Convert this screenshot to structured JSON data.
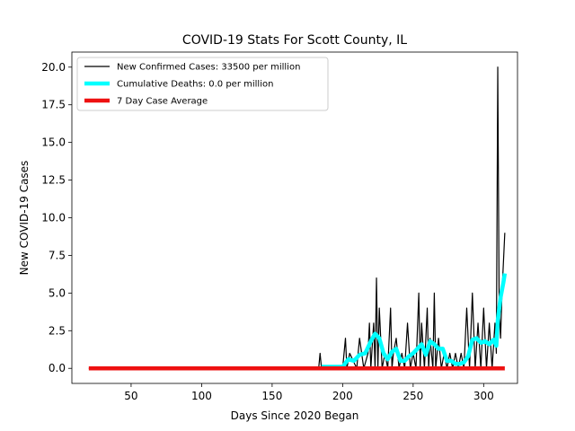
{
  "chart_data": {
    "type": "line",
    "title": "COVID-19 Stats For Scott County, IL",
    "xlabel": "Days Since 2020 Began",
    "ylabel": "New COVID-19 Cases",
    "xlim": [
      8,
      324
    ],
    "ylim": [
      -1.0,
      21.0
    ],
    "xticks": [
      50,
      100,
      150,
      200,
      250,
      300
    ],
    "xtick_labels": [
      "50",
      "100",
      "150",
      "200",
      "250",
      "300"
    ],
    "yticks": [
      0,
      2.5,
      5,
      7.5,
      10,
      12.5,
      15,
      17.5,
      20
    ],
    "ytick_labels": [
      "0.0",
      "2.5",
      "5.0",
      "7.5",
      "10.0",
      "12.5",
      "15.0",
      "17.5",
      "20.0"
    ],
    "grid": false,
    "legend_position": "top-left",
    "series": [
      {
        "name": "New Confirmed Cases: 33500 per million",
        "color": "#000000",
        "x": [
          20,
          183,
          184,
          185,
          200,
          202,
          203,
          205,
          210,
          212,
          215,
          218,
          219,
          220,
          222,
          223,
          224,
          225,
          226,
          227,
          228,
          230,
          232,
          234,
          235,
          236,
          238,
          240,
          242,
          244,
          246,
          248,
          250,
          252,
          254,
          255,
          256,
          258,
          260,
          261,
          262,
          264,
          265,
          266,
          268,
          270,
          272,
          274,
          276,
          278,
          280,
          282,
          284,
          286,
          288,
          290,
          292,
          294,
          296,
          298,
          300,
          302,
          304,
          306,
          308,
          309,
          310,
          311,
          312,
          313,
          314,
          315
        ],
        "y": [
          0,
          0,
          1,
          0,
          0,
          2,
          0,
          1,
          0,
          2,
          0,
          1,
          3,
          0,
          3,
          0,
          6,
          0,
          4,
          2,
          0,
          1,
          0,
          4,
          0,
          1,
          2,
          0,
          1,
          0,
          3,
          0,
          1,
          0,
          5,
          0,
          3,
          0,
          4,
          0,
          2,
          0,
          5,
          0,
          2,
          0,
          1,
          0,
          1,
          0,
          1,
          0,
          1,
          0,
          4,
          0,
          5,
          0,
          3,
          0,
          4,
          0,
          3,
          0,
          3,
          1,
          20,
          4,
          2,
          5,
          7,
          9
        ]
      },
      {
        "name": "Cumulative Deaths: 0.0 per million",
        "color": "#00ffff",
        "x": [
          185,
          188,
          200,
          204,
          208,
          212,
          216,
          220,
          223,
          226,
          229,
          232,
          235,
          238,
          241,
          244,
          247,
          250,
          253,
          256,
          259,
          262,
          265,
          268,
          271,
          274,
          277,
          280,
          283,
          286,
          289,
          292,
          295,
          298,
          301,
          304,
          307,
          309,
          310,
          312,
          314,
          315
        ],
        "y": [
          0.1,
          0.1,
          0.1,
          0.6,
          0.5,
          0.9,
          1.0,
          1.8,
          2.3,
          2.0,
          1.0,
          0.6,
          1.1,
          1.3,
          0.5,
          0.5,
          0.8,
          1.0,
          1.3,
          1.6,
          0.9,
          1.8,
          1.6,
          1.3,
          1.3,
          0.5,
          0.5,
          0.3,
          0.3,
          0.4,
          0.8,
          1.9,
          2.0,
          1.7,
          1.8,
          1.6,
          1.9,
          1.5,
          3.2,
          4.7,
          5.7,
          6.3
        ]
      },
      {
        "name": "7 Day Case Average",
        "color": "#ee1111",
        "x": [
          20,
          315
        ],
        "y": [
          0,
          0
        ]
      }
    ]
  }
}
